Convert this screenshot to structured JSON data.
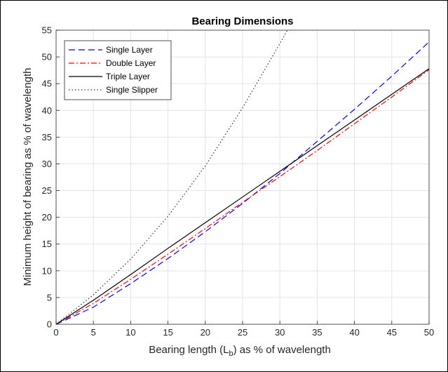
{
  "chart_data": {
    "type": "line",
    "title": "Bearing Dimensions",
    "xlabel": "Bearing length (L",
    "xlabel_sub": "b",
    "xlabel_rest": ") as % of wavelength",
    "ylabel": "Minimum height of bearing as % of wavelength",
    "xlim": [
      0,
      50
    ],
    "ylim": [
      0,
      55
    ],
    "xticks": [
      0,
      5,
      10,
      15,
      20,
      25,
      30,
      35,
      40,
      45,
      50
    ],
    "yticks": [
      0,
      5,
      10,
      15,
      20,
      25,
      30,
      35,
      40,
      45,
      50,
      55
    ],
    "grid": true,
    "legend_position": "top-left",
    "series": [
      {
        "name": "Single Layer",
        "style": "dashed",
        "color": "#0000ff",
        "x": [
          0,
          5,
          10,
          15,
          20,
          25,
          30,
          35,
          40,
          45,
          50
        ],
        "y": [
          0,
          3.2,
          7.6,
          12.3,
          17.3,
          22.6,
          28.2,
          34.2,
          40.2,
          46.4,
          52.8
        ]
      },
      {
        "name": "Double Layer",
        "style": "dash-dot",
        "color": "#ff0000",
        "x": [
          0,
          5,
          10,
          15,
          20,
          25,
          30,
          35,
          40,
          45,
          50
        ],
        "y": [
          0,
          3.9,
          8.4,
          13.1,
          17.9,
          22.8,
          27.6,
          32.5,
          37.5,
          42.5,
          47.6
        ]
      },
      {
        "name": "Triple Layer",
        "style": "solid",
        "color": "#000000",
        "x": [
          0,
          5,
          10,
          15,
          20,
          25,
          30,
          35,
          40,
          45,
          50
        ],
        "y": [
          0,
          4.5,
          9.3,
          14.2,
          19.0,
          23.8,
          28.6,
          33.4,
          38.2,
          43.0,
          47.8
        ]
      },
      {
        "name": "Single Slipper",
        "style": "dotted",
        "color": "#333333",
        "x": [
          0,
          5,
          10,
          15,
          20,
          25,
          30,
          32
        ],
        "y": [
          0,
          5.5,
          12.2,
          20.2,
          29.6,
          40.5,
          52.5,
          57.5
        ]
      }
    ]
  }
}
